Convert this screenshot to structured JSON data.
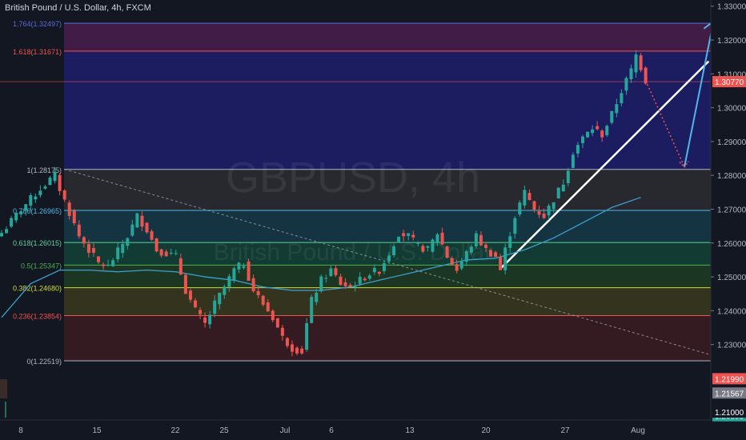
{
  "header": {
    "title": "British Pound / U.S. Dollar, 4h, FXCM"
  },
  "watermark": {
    "symbol": "GBPUSD, 4h",
    "name": "British Pound / U.S. Dollar"
  },
  "colors": {
    "background": "#131722",
    "bull": "#26a69a",
    "bear": "#ef5350",
    "ma": "#3d9fd1",
    "trend": "#ffffff",
    "projection_up": "#4fb7e6",
    "projection_down": "#ef5350"
  },
  "chart_data": {
    "type": "candlestick",
    "symbol": "GBPUSD",
    "timeframe": "4h",
    "x_ticks": [
      "8",
      "15",
      "22",
      "25",
      "Jul",
      "6",
      "13",
      "20",
      "27",
      "Aug"
    ],
    "y_ticks": [
      "1.33000",
      "1.32000",
      "1.31000",
      "1.30000",
      "1.29000",
      "1.28000",
      "1.27000",
      "1.26000",
      "1.25000",
      "1.24000",
      "1.23000"
    ],
    "ylim": [
      1.2215,
      1.332
    ],
    "price_labels": [
      {
        "text": "1.30770",
        "value": 1.3077,
        "color": "#ef5350"
      },
      {
        "text": "1.21990",
        "value": 1.2199,
        "color": "#ef5350"
      },
      {
        "text": "1.21567",
        "value": 1.21567,
        "color": "#787b86"
      },
      {
        "text": "1.20895",
        "value": 1.20895,
        "color": "#26a69a"
      },
      {
        "text": "1.21000",
        "value": 1.21,
        "color": "#131722"
      }
    ],
    "fibonacci": [
      {
        "label": "1.764(1.32497)",
        "level": 1.764,
        "price": 1.32497,
        "color": "#5b6bd6",
        "fill": "#4a1d4c"
      },
      {
        "label": "1.618(1.31671)",
        "level": 1.618,
        "price": 1.31671,
        "color": "#ef5350",
        "fill": "#1f1e6b"
      },
      {
        "label": "1(1.28175)",
        "level": 1,
        "price": 1.28175,
        "color": "#b2b5be",
        "fill": "#2d2d31"
      },
      {
        "label": "0.786(1.26965)",
        "level": 0.786,
        "price": 1.26965,
        "color": "#4fb7e6",
        "fill": "#163a47"
      },
      {
        "label": "0.618(1.26015)",
        "level": 0.618,
        "price": 1.26015,
        "color": "#5ed39a",
        "fill": "#124236"
      },
      {
        "label": "0.5(1.25347)",
        "level": 0.5,
        "price": 1.25347,
        "color": "#4caf50",
        "fill": "#1d3d25"
      },
      {
        "label": "0.382(1.24680)",
        "level": 0.382,
        "price": 1.2468,
        "color": "#cddc39",
        "fill": "#3b3a1d"
      },
      {
        "label": "0.236(1.23854)",
        "level": 0.236,
        "price": 1.23854,
        "color": "#ef5350",
        "fill": "#3a1c21"
      },
      {
        "label": "0(1.22519)",
        "level": 0,
        "price": 1.22519,
        "color": "#b2b5be",
        "fill": null
      }
    ],
    "path": [
      [
        0,
        1.263
      ],
      [
        4,
        1.27
      ],
      [
        8,
        1.276
      ],
      [
        11,
        1.28
      ],
      [
        12,
        1.276
      ],
      [
        16,
        1.262
      ],
      [
        20,
        1.254
      ],
      [
        22,
        1.253
      ],
      [
        26,
        1.262
      ],
      [
        28,
        1.268
      ],
      [
        30,
        1.264
      ],
      [
        32,
        1.258
      ],
      [
        36,
        1.256
      ],
      [
        38,
        1.246
      ],
      [
        40,
        1.24
      ],
      [
        42,
        1.236
      ],
      [
        44,
        1.242
      ],
      [
        46,
        1.247
      ],
      [
        48,
        1.252
      ],
      [
        50,
        1.254
      ],
      [
        52,
        1.246
      ],
      [
        54,
        1.242
      ],
      [
        56,
        1.238
      ],
      [
        58,
        1.232
      ],
      [
        60,
        1.229
      ],
      [
        62,
        1.228
      ],
      [
        63,
        1.236
      ],
      [
        64,
        1.243
      ],
      [
        66,
        1.249
      ],
      [
        68,
        1.252
      ],
      [
        70,
        1.248
      ],
      [
        72,
        1.247
      ],
      [
        74,
        1.249
      ],
      [
        76,
        1.251
      ],
      [
        78,
        1.252
      ],
      [
        80,
        1.257
      ],
      [
        82,
        1.263
      ],
      [
        84,
        1.262
      ],
      [
        86,
        1.259
      ],
      [
        88,
        1.258
      ],
      [
        90,
        1.263
      ],
      [
        92,
        1.256
      ],
      [
        94,
        1.252
      ],
      [
        96,
        1.257
      ],
      [
        98,
        1.262
      ],
      [
        100,
        1.258
      ],
      [
        102,
        1.256
      ],
      [
        103,
        1.252
      ],
      [
        104,
        1.258
      ],
      [
        106,
        1.268
      ],
      [
        108,
        1.275
      ],
      [
        110,
        1.27
      ],
      [
        112,
        1.268
      ],
      [
        114,
        1.273
      ],
      [
        116,
        1.278
      ],
      [
        118,
        1.287
      ],
      [
        120,
        1.291
      ],
      [
        122,
        1.294
      ],
      [
        124,
        1.292
      ],
      [
        126,
        1.298
      ],
      [
        128,
        1.305
      ],
      [
        130,
        1.311
      ],
      [
        131,
        1.3155
      ],
      [
        132,
        1.312
      ],
      [
        133,
        1.308
      ]
    ],
    "sma": [
      [
        0,
        1.238
      ],
      [
        6,
        1.248
      ],
      [
        12,
        1.252
      ],
      [
        18,
        1.252
      ],
      [
        24,
        1.2515
      ],
      [
        30,
        1.252
      ],
      [
        36,
        1.2515
      ],
      [
        42,
        1.25
      ],
      [
        48,
        1.249
      ],
      [
        54,
        1.247
      ],
      [
        60,
        1.246
      ],
      [
        66,
        1.246
      ],
      [
        72,
        1.247
      ],
      [
        78,
        1.249
      ],
      [
        84,
        1.251
      ],
      [
        90,
        1.253
      ],
      [
        96,
        1.255
      ],
      [
        102,
        1.2555
      ],
      [
        108,
        1.258
      ],
      [
        114,
        1.2615
      ],
      [
        120,
        1.266
      ],
      [
        126,
        1.2705
      ],
      [
        132,
        1.2735
      ]
    ],
    "drawings": {
      "trend_line": [
        [
          103,
          1.2524
        ],
        [
          146,
          1.3137
        ]
      ],
      "dashed_trend": [
        [
          13,
          1.2818
        ],
        [
          150,
          1.2255
        ]
      ],
      "projection_down": [
        [
          133,
          1.308
        ],
        [
          141,
          1.2825
        ]
      ],
      "projection_up": [
        [
          141,
          1.2825
        ],
        [
          147,
          1.3255
        ]
      ]
    }
  }
}
